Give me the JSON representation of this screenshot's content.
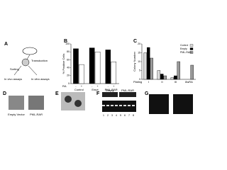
{
  "panels": {
    "a": "A",
    "b": "B",
    "c": "C",
    "d": "D",
    "e": "E",
    "f": "F",
    "g": "G"
  },
  "diagram": {
    "transduction": "Transduction",
    "sorting": "Sorting",
    "in_vivo": "In vivo assays",
    "in_vitro": "In vitro assays"
  },
  "chart_data": [
    {
      "type": "bar",
      "y_label": "% Positive Cells",
      "x_label": "RA",
      "categories": [
        "Control",
        "Empt",
        "PML-RAR"
      ],
      "sub_labels": [
        "-",
        "+"
      ],
      "series": [
        {
          "color": "#000000",
          "values": [
            88,
            90,
            85
          ]
        },
        {
          "color": "#ffffff",
          "values": [
            48,
            80,
            55
          ]
        }
      ],
      "ylim": [
        0,
        100
      ],
      "yticks": [
        0,
        20,
        40,
        60,
        80,
        100
      ]
    },
    {
      "type": "bar",
      "y_label": "Colony Number",
      "x_label": "Plating",
      "categories": [
        "I",
        "II",
        "III",
        "8wRA"
      ],
      "series": [
        {
          "name": "Control",
          "color": "#dddddd",
          "values": [
            15,
            5,
            1,
            0
          ]
        },
        {
          "name": "Empty",
          "color": "#000000",
          "values": [
            18,
            3,
            2,
            0
          ]
        },
        {
          "name": "PML-RAR",
          "color": "#999999",
          "values": [
            12,
            2,
            10,
            8
          ]
        }
      ],
      "ylim": [
        0,
        20
      ],
      "yticks": [
        0,
        5,
        10,
        15,
        20
      ],
      "legend": "upper-right"
    }
  ],
  "panel_d": {
    "labels": [
      "Empty Vector",
      "PML-RAR"
    ]
  },
  "panel_f": {
    "labels": [
      "Empty",
      "PML-RAR"
    ],
    "lanes": [
      "1",
      "2",
      "3",
      "4",
      "5",
      "6",
      "7",
      "8"
    ]
  }
}
